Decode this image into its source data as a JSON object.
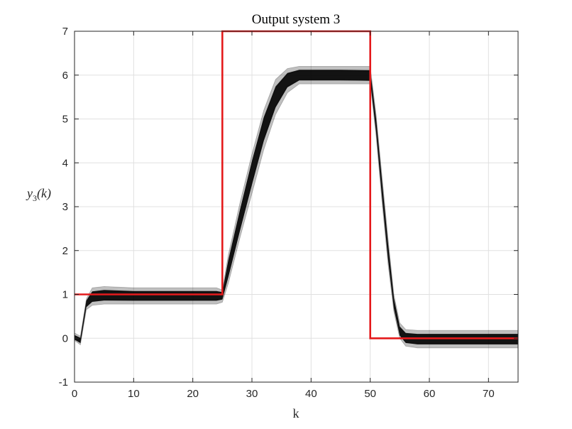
{
  "chart_data": {
    "type": "line",
    "title": "Output system 3",
    "xlabel": "k",
    "ylabel_base": "y",
    "ylabel_sub": "3",
    "ylabel_arg": "(k)",
    "xlim": [
      0,
      75
    ],
    "ylim": [
      -1,
      7
    ],
    "x_ticks": [
      0,
      10,
      20,
      30,
      40,
      50,
      60,
      70
    ],
    "x_tick_labels": [
      "0",
      "10",
      "20",
      "30",
      "40",
      "50",
      "60",
      "70"
    ],
    "y_ticks": [
      -1,
      0,
      1,
      2,
      3,
      4,
      5,
      6,
      7
    ],
    "y_tick_labels": [
      "-1",
      "0",
      "1",
      "2",
      "3",
      "4",
      "5",
      "6",
      "7"
    ],
    "grid": true,
    "legend": "none",
    "colors": {
      "reference": "#e41a1c",
      "output_band": "#000000",
      "grid": "#e0e0e0",
      "axes": "#262626"
    },
    "series": [
      {
        "role": "reference",
        "x": [
          0,
          25,
          25,
          50,
          50,
          75
        ],
        "values": [
          1,
          1,
          7,
          7,
          0,
          0
        ]
      },
      {
        "role": "output-band",
        "x": [
          0,
          1,
          2,
          3,
          5,
          10,
          15,
          20,
          24,
          25,
          26,
          28,
          30,
          32,
          34,
          36,
          38,
          40,
          45,
          50,
          51,
          52,
          53,
          54,
          55,
          56,
          58,
          60,
          65,
          70,
          75
        ],
        "upper": [
          0.12,
          0.05,
          0.9,
          1.15,
          1.18,
          1.15,
          1.15,
          1.15,
          1.15,
          1.1,
          1.9,
          3.1,
          4.2,
          5.2,
          5.9,
          6.15,
          6.2,
          6.2,
          6.2,
          6.2,
          5.1,
          3.7,
          2.3,
          1.0,
          0.35,
          0.2,
          0.18,
          0.18,
          0.18,
          0.18,
          0.18
        ],
        "lower": [
          -0.05,
          -0.15,
          0.65,
          0.75,
          0.78,
          0.78,
          0.78,
          0.78,
          0.78,
          0.82,
          1.25,
          2.3,
          3.3,
          4.3,
          5.1,
          5.6,
          5.8,
          5.8,
          5.8,
          5.8,
          4.6,
          3.1,
          1.7,
          0.6,
          0.0,
          -0.18,
          -0.22,
          -0.22,
          -0.22,
          -0.22,
          -0.22
        ],
        "median": [
          0.0,
          -0.05,
          0.8,
          0.95,
          0.98,
          0.97,
          0.97,
          0.97,
          0.97,
          0.98,
          1.6,
          2.7,
          3.8,
          4.8,
          5.5,
          5.9,
          6.0,
          6.0,
          6.0,
          5.98,
          4.85,
          3.4,
          2.0,
          0.8,
          0.15,
          0.0,
          -0.02,
          -0.02,
          -0.02,
          -0.02,
          -0.02
        ]
      }
    ]
  }
}
